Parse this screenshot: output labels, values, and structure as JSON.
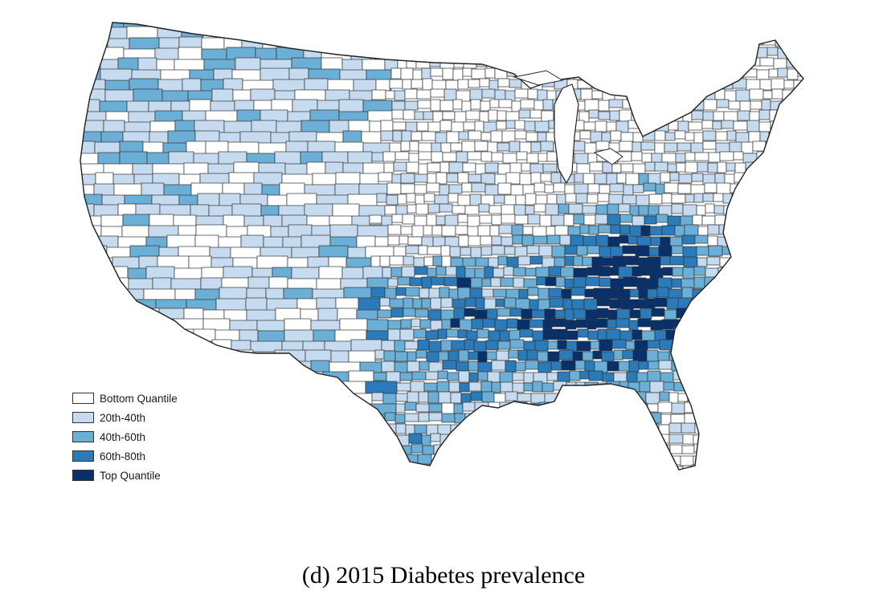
{
  "caption": "(d) 2015 Diabetes prevalence",
  "legend": {
    "items": [
      {
        "label": "Bottom Quantile",
        "color": "#ffffff"
      },
      {
        "label": "20th-40th",
        "color": "#c6dbef"
      },
      {
        "label": "40th-60th",
        "color": "#6baed6"
      },
      {
        "label": "60th-80th",
        "color": "#2b7bba"
      },
      {
        "label": "Top Quantile",
        "color": "#08306b"
      }
    ]
  },
  "colors": {
    "border": "#333333",
    "background": "#ffffff"
  }
}
